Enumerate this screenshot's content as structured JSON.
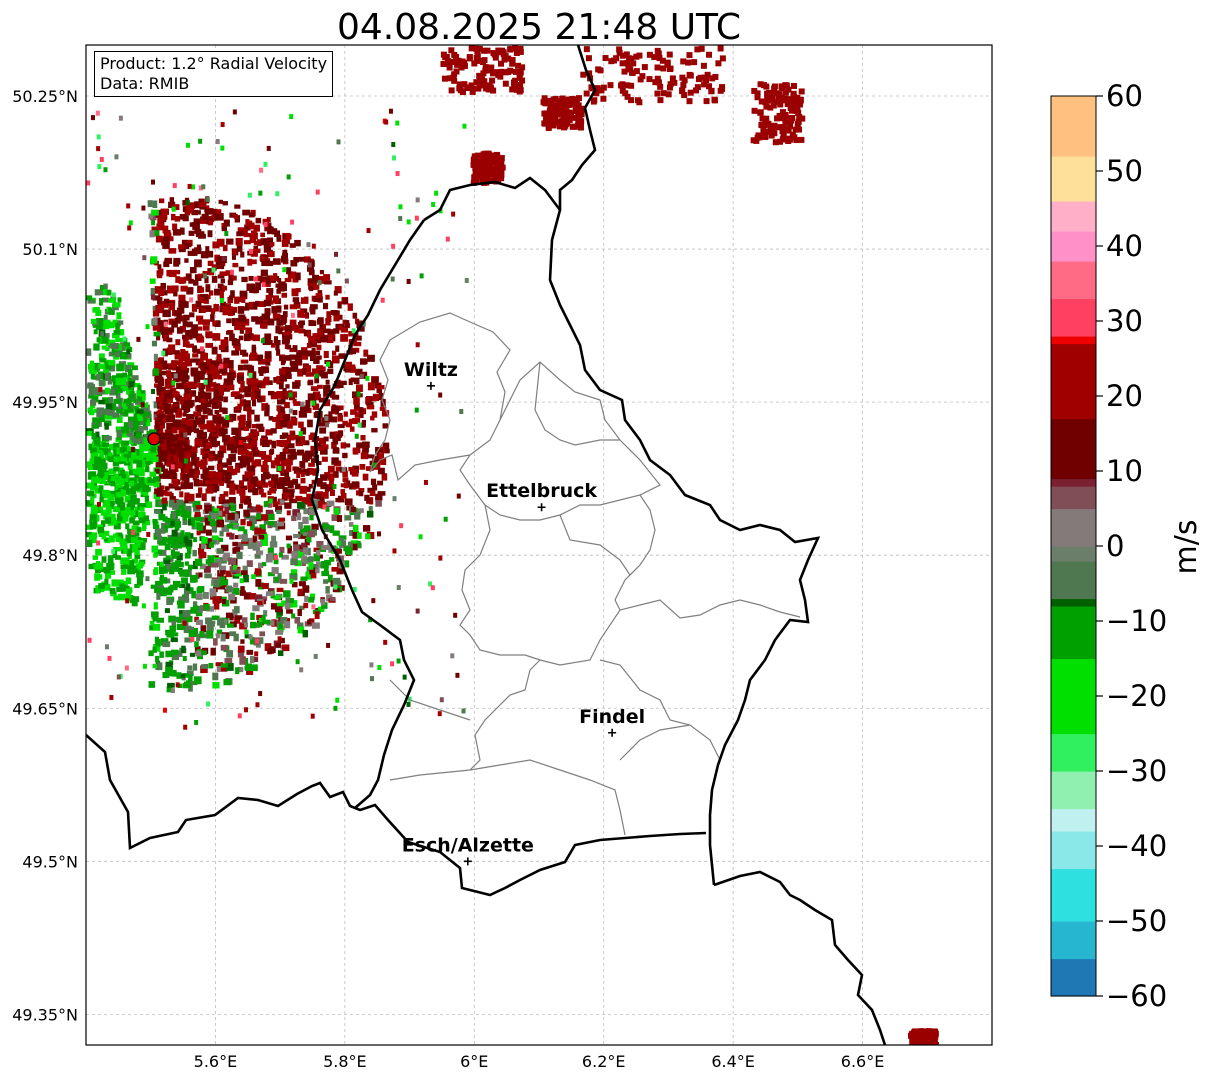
{
  "title": "04.08.2025 21:48 UTC",
  "info_box": {
    "product": "Product: 1.2° Radial Velocity",
    "data": "Data: RMIB"
  },
  "map": {
    "lon_range": [
      5.4,
      6.8
    ],
    "lat_range": [
      49.32,
      50.3
    ],
    "lat_ticks": [
      {
        "value": 50.25,
        "label": "50.25°N"
      },
      {
        "value": 50.1,
        "label": "50.1°N"
      },
      {
        "value": 49.95,
        "label": "49.95°N"
      },
      {
        "value": 49.8,
        "label": "49.8°N"
      },
      {
        "value": 49.65,
        "label": "49.65°N"
      },
      {
        "value": 49.5,
        "label": "49.5°N"
      },
      {
        "value": 49.35,
        "label": "49.35°N"
      }
    ],
    "lon_ticks": [
      {
        "value": 5.6,
        "label": "5.6°E"
      },
      {
        "value": 5.8,
        "label": "5.8°E"
      },
      {
        "value": 6.0,
        "label": "6°E"
      },
      {
        "value": 6.2,
        "label": "6.2°E"
      },
      {
        "value": 6.4,
        "label": "6.4°E"
      },
      {
        "value": 6.6,
        "label": "6.6°E"
      }
    ],
    "grid": true,
    "radar_site": {
      "lon": 5.505,
      "lat": 49.914
    },
    "cities": [
      {
        "name": "Wiltz",
        "lon": 5.933,
        "lat": 49.966
      },
      {
        "name": "Ettelbruck",
        "lon": 6.104,
        "lat": 49.847
      },
      {
        "name": "Findel",
        "lon": 6.213,
        "lat": 49.626
      },
      {
        "name": "Esch/Alzette",
        "lon": 5.99,
        "lat": 49.5
      }
    ]
  },
  "colorbar": {
    "label": "m/s",
    "min": -60,
    "max": 60,
    "ticks": [
      {
        "value": 60,
        "label": "60"
      },
      {
        "value": 50,
        "label": "50"
      },
      {
        "value": 40,
        "label": "40"
      },
      {
        "value": 30,
        "label": "30"
      },
      {
        "value": 20,
        "label": "20"
      },
      {
        "value": 10,
        "label": "10"
      },
      {
        "value": 0,
        "label": "0"
      },
      {
        "value": -10,
        "label": "−10"
      },
      {
        "value": -20,
        "label": "−20"
      },
      {
        "value": -30,
        "label": "−30"
      },
      {
        "value": -40,
        "label": "−40"
      },
      {
        "value": -50,
        "label": "−50"
      },
      {
        "value": -60,
        "label": "−60"
      }
    ],
    "stops": [
      {
        "value": -60,
        "color": "#1f77b4"
      },
      {
        "value": -55,
        "color": "#26b6d0"
      },
      {
        "value": -50,
        "color": "#2ee0e0"
      },
      {
        "value": -43,
        "color": "#8ae8e8"
      },
      {
        "value": -38,
        "color": "#c0f0f0"
      },
      {
        "value": -35,
        "color": "#90f0b0"
      },
      {
        "value": -30,
        "color": "#30f060"
      },
      {
        "value": -25,
        "color": "#00e000"
      },
      {
        "value": -15,
        "color": "#00a000"
      },
      {
        "value": -8,
        "color": "#006000"
      },
      {
        "value": -7,
        "color": "#507850"
      },
      {
        "value": -2,
        "color": "#6a7e6a"
      },
      {
        "value": 0,
        "color": "#857a7a"
      },
      {
        "value": 5,
        "color": "#804e55"
      },
      {
        "value": 8,
        "color": "#7a2030"
      },
      {
        "value": 9,
        "color": "#700000"
      },
      {
        "value": 17,
        "color": "#a00000"
      },
      {
        "value": 27,
        "color": "#ee0000"
      },
      {
        "value": 28,
        "color": "#ff4060"
      },
      {
        "value": 33,
        "color": "#ff6a85"
      },
      {
        "value": 38,
        "color": "#ff90c8"
      },
      {
        "value": 42,
        "color": "#ffb0c8"
      },
      {
        "value": 46,
        "color": "#ffe098"
      },
      {
        "value": 52,
        "color": "#ffc080"
      },
      {
        "value": 60,
        "color": "#ff9a55"
      }
    ]
  }
}
